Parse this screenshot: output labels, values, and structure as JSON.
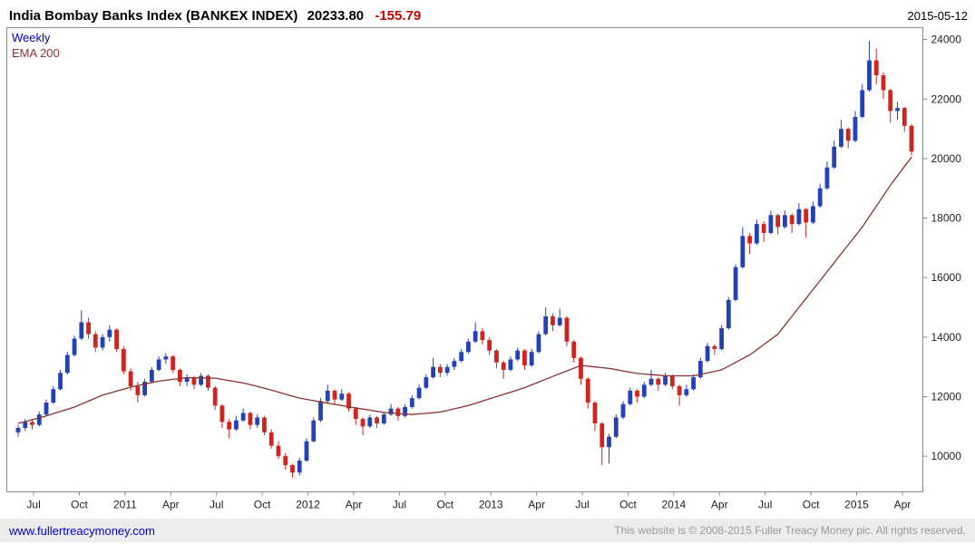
{
  "header": {
    "title": "India Bombay Banks Index (BANKEX INDEX)",
    "last_price": "20233.80",
    "change": "-155.79",
    "date": "2015-05-12"
  },
  "footer": {
    "link": "www.fullertreacymoney.com",
    "copyright": "This website is © 2008-2015 Fuller Treacy Money plc. All rights reserved."
  },
  "chart_data": {
    "type": "candlestick",
    "title": "India Bombay Banks Index (BANKEX INDEX)",
    "timeframe_label": "Weekly",
    "overlay_label": "EMA 200",
    "ylim": [
      8800,
      24400
    ],
    "y_ticks": [
      10000,
      12000,
      14000,
      16000,
      18000,
      20000,
      22000,
      24000
    ],
    "x_ticks": [
      {
        "pos": 2.2,
        "label": "Jul"
      },
      {
        "pos": 8.7,
        "label": "Oct"
      },
      {
        "pos": 15.2,
        "label": "2011"
      },
      {
        "pos": 21.7,
        "label": "Apr"
      },
      {
        "pos": 28.2,
        "label": "Jul"
      },
      {
        "pos": 34.7,
        "label": "Oct"
      },
      {
        "pos": 41.2,
        "label": "2012"
      },
      {
        "pos": 47.7,
        "label": "Apr"
      },
      {
        "pos": 54.2,
        "label": "Jul"
      },
      {
        "pos": 60.7,
        "label": "Oct"
      },
      {
        "pos": 67.2,
        "label": "2013"
      },
      {
        "pos": 73.7,
        "label": "Apr"
      },
      {
        "pos": 80.2,
        "label": "Jul"
      },
      {
        "pos": 86.7,
        "label": "Oct"
      },
      {
        "pos": 93.2,
        "label": "2014"
      },
      {
        "pos": 99.7,
        "label": "Apr"
      },
      {
        "pos": 106.2,
        "label": "Jul"
      },
      {
        "pos": 112.7,
        "label": "Oct"
      },
      {
        "pos": 119.2,
        "label": "2015"
      },
      {
        "pos": 125.7,
        "label": "Apr"
      }
    ],
    "colors": {
      "up": "#2442b4",
      "down": "#d02420",
      "ema": "#8b3232",
      "axis": "#888888",
      "tick_text": "#222222"
    },
    "candles": [
      [
        10800,
        11050,
        10650,
        10950
      ],
      [
        10950,
        11250,
        10850,
        11150
      ],
      [
        11150,
        11250,
        10900,
        11050
      ],
      [
        11050,
        11500,
        11000,
        11400
      ],
      [
        11400,
        11900,
        11350,
        11800
      ],
      [
        11800,
        12350,
        11750,
        12250
      ],
      [
        12250,
        12900,
        12200,
        12800
      ],
      [
        12800,
        13500,
        12750,
        13400
      ],
      [
        13400,
        14050,
        13350,
        13950
      ],
      [
        13950,
        14900,
        13900,
        14500
      ],
      [
        14500,
        14650,
        13950,
        14100
      ],
      [
        14100,
        14200,
        13500,
        13650
      ],
      [
        13650,
        14100,
        13550,
        14000
      ],
      [
        14000,
        14400,
        13850,
        14250
      ],
      [
        14250,
        14300,
        13500,
        13600
      ],
      [
        13600,
        13700,
        12750,
        12850
      ],
      [
        12850,
        12950,
        12200,
        12350
      ],
      [
        12350,
        12500,
        11800,
        12050
      ],
      [
        12050,
        12600,
        12000,
        12500
      ],
      [
        12500,
        13000,
        12450,
        12900
      ],
      [
        12900,
        13350,
        12850,
        13250
      ],
      [
        13250,
        13450,
        13100,
        13350
      ],
      [
        13350,
        13400,
        12800,
        12900
      ],
      [
        12900,
        12950,
        12350,
        12500
      ],
      [
        12500,
        12750,
        12350,
        12650
      ],
      [
        12650,
        12700,
        12250,
        12400
      ],
      [
        12400,
        12800,
        12350,
        12700
      ],
      [
        12700,
        12750,
        12200,
        12300
      ],
      [
        12300,
        12350,
        11550,
        11700
      ],
      [
        11700,
        11750,
        10950,
        11150
      ],
      [
        11150,
        11250,
        10600,
        10900
      ],
      [
        10900,
        11350,
        10850,
        11200
      ],
      [
        11200,
        11600,
        11150,
        11450
      ],
      [
        11450,
        11500,
        10900,
        11050
      ],
      [
        11050,
        11400,
        10950,
        11300
      ],
      [
        11300,
        11350,
        10700,
        10800
      ],
      [
        10800,
        10900,
        10250,
        10350
      ],
      [
        10350,
        10500,
        9900,
        10000
      ],
      [
        10000,
        10100,
        9550,
        9700
      ],
      [
        9700,
        9750,
        9280,
        9450
      ],
      [
        9450,
        9950,
        9350,
        9850
      ],
      [
        9850,
        10600,
        9800,
        10500
      ],
      [
        10500,
        11300,
        10450,
        11200
      ],
      [
        11200,
        11950,
        11150,
        11850
      ],
      [
        11850,
        12400,
        11800,
        12200
      ],
      [
        12200,
        12250,
        11750,
        11900
      ],
      [
        11900,
        12250,
        11850,
        12100
      ],
      [
        12100,
        12150,
        11500,
        11600
      ],
      [
        11600,
        11650,
        11050,
        11250
      ],
      [
        11250,
        11300,
        10700,
        11000
      ],
      [
        11000,
        11400,
        10950,
        11300
      ],
      [
        11300,
        11350,
        10950,
        11100
      ],
      [
        11100,
        11500,
        11050,
        11400
      ],
      [
        11400,
        11750,
        11350,
        11600
      ],
      [
        11600,
        11650,
        11200,
        11350
      ],
      [
        11350,
        11750,
        11300,
        11650
      ],
      [
        11650,
        12050,
        11600,
        11950
      ],
      [
        11950,
        12400,
        11900,
        12300
      ],
      [
        12300,
        12750,
        12250,
        12650
      ],
      [
        12650,
        13300,
        12600,
        13000
      ],
      [
        13000,
        13100,
        12650,
        12800
      ],
      [
        12800,
        13100,
        12700,
        13000
      ],
      [
        13000,
        13300,
        12900,
        13200
      ],
      [
        13200,
        13600,
        13150,
        13500
      ],
      [
        13500,
        13950,
        13450,
        13850
      ],
      [
        13850,
        14500,
        13800,
        14200
      ],
      [
        14200,
        14300,
        13750,
        13900
      ],
      [
        13900,
        14000,
        13400,
        13550
      ],
      [
        13550,
        13600,
        12950,
        13150
      ],
      [
        13150,
        13200,
        12600,
        12900
      ],
      [
        12900,
        13350,
        12850,
        13250
      ],
      [
        13250,
        13650,
        13200,
        13550
      ],
      [
        13550,
        13600,
        12900,
        13050
      ],
      [
        13050,
        13600,
        13000,
        13500
      ],
      [
        13500,
        14200,
        13450,
        14100
      ],
      [
        14100,
        15000,
        14050,
        14700
      ],
      [
        14700,
        14800,
        14200,
        14400
      ],
      [
        14400,
        14950,
        14350,
        14650
      ],
      [
        14650,
        14700,
        13700,
        13850
      ],
      [
        13850,
        13900,
        13150,
        13300
      ],
      [
        13300,
        13350,
        12400,
        12600
      ],
      [
        12600,
        12650,
        11600,
        11800
      ],
      [
        11800,
        11850,
        10850,
        11100
      ],
      [
        11100,
        11150,
        9700,
        10300
      ],
      [
        10300,
        10750,
        9750,
        10650
      ],
      [
        10650,
        11400,
        10600,
        11300
      ],
      [
        11300,
        11850,
        11250,
        11750
      ],
      [
        11750,
        12300,
        11700,
        12200
      ],
      [
        12200,
        12250,
        11800,
        12000
      ],
      [
        12000,
        12500,
        11950,
        12400
      ],
      [
        12400,
        12900,
        12350,
        12600
      ],
      [
        12600,
        12650,
        12200,
        12400
      ],
      [
        12400,
        12800,
        12350,
        12700
      ],
      [
        12700,
        12750,
        12250,
        12350
      ],
      [
        12350,
        12400,
        11700,
        12050
      ],
      [
        12050,
        12400,
        12000,
        12250
      ],
      [
        12250,
        12750,
        12200,
        12650
      ],
      [
        12650,
        13300,
        12600,
        13200
      ],
      [
        13200,
        13800,
        13150,
        13700
      ],
      [
        13700,
        13750,
        13400,
        13600
      ],
      [
        13600,
        14400,
        13550,
        14300
      ],
      [
        14300,
        15350,
        14250,
        15250
      ],
      [
        15250,
        16450,
        15200,
        16350
      ],
      [
        16350,
        17700,
        16300,
        17400
      ],
      [
        17400,
        17500,
        16800,
        17150
      ],
      [
        17150,
        17950,
        17100,
        17800
      ],
      [
        17800,
        17900,
        17200,
        17500
      ],
      [
        17500,
        18250,
        17450,
        18100
      ],
      [
        18100,
        18150,
        17450,
        17700
      ],
      [
        17700,
        18250,
        17650,
        18100
      ],
      [
        18100,
        18150,
        17500,
        17800
      ],
      [
        17800,
        18500,
        17750,
        18300
      ],
      [
        18300,
        18350,
        17350,
        17850
      ],
      [
        17850,
        18550,
        17800,
        18400
      ],
      [
        18400,
        19150,
        18350,
        19000
      ],
      [
        19000,
        19900,
        18950,
        19700
      ],
      [
        19700,
        20600,
        19650,
        20400
      ],
      [
        20400,
        21300,
        20350,
        21000
      ],
      [
        21000,
        21050,
        20350,
        20600
      ],
      [
        20600,
        21600,
        20550,
        21400
      ],
      [
        21400,
        22500,
        21350,
        22300
      ],
      [
        22300,
        23950,
        22250,
        23300
      ],
      [
        23300,
        23700,
        22500,
        22800
      ],
      [
        22800,
        22900,
        22000,
        22300
      ],
      [
        22300,
        22350,
        21200,
        21600
      ],
      [
        21600,
        21900,
        21300,
        21700
      ],
      [
        21700,
        21750,
        20900,
        21100
      ],
      [
        21100,
        21150,
        20100,
        20233.8
      ]
    ],
    "ema": [
      11100,
      11162,
      11225,
      11287,
      11350,
      11425,
      11500,
      11575,
      11650,
      11750,
      11850,
      11950,
      12050,
      12117,
      12185,
      12252,
      12320,
      12370,
      12420,
      12470,
      12520,
      12550,
      12580,
      12610,
      12640,
      12635,
      12630,
      12625,
      12620,
      12580,
      12540,
      12500,
      12460,
      12400,
      12340,
      12280,
      12220,
      12152,
      12085,
      12017,
      11950,
      11907,
      11865,
      11822,
      11780,
      11740,
      11700,
      11660,
      11620,
      11582,
      11545,
      11507,
      11470,
      11452,
      11435,
      11417,
      11400,
      11420,
      11440,
      11460,
      11480,
      11535,
      11590,
      11645,
      11700,
      11775,
      11850,
      11925,
      12000,
      12075,
      12150,
      12225,
      12300,
      12395,
      12490,
      12585,
      12680,
      12772,
      12865,
      12957,
      13050,
      13025,
      13000,
      12975,
      12950,
      12907,
      12865,
      12822,
      12780,
      12760,
      12740,
      12720,
      12700,
      12700,
      12700,
      12700,
      12700,
      12750,
      12800,
      12850,
      12900,
      13025,
      13150,
      13275,
      13400,
      13575,
      13750,
      13925,
      14100,
      14400,
      14700,
      15000,
      15300,
      15600,
      15900,
      16200,
      16500,
      16800,
      17100,
      17400,
      17700,
      18050,
      18400,
      18750,
      19100,
      19417,
      19733,
      20050
    ]
  }
}
